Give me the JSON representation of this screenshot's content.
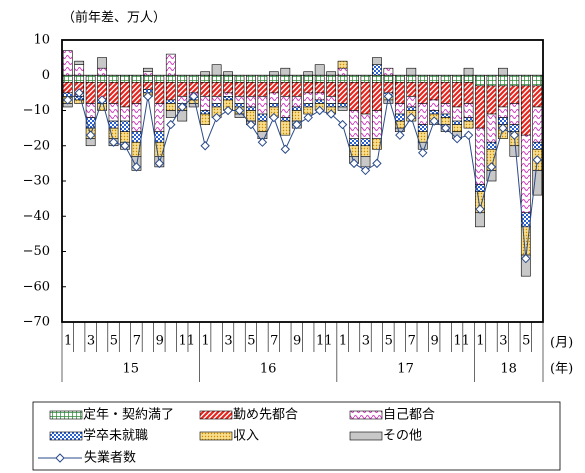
{
  "chart_data": {
    "type": "bar",
    "y_label": "（前年差、万人）",
    "x_unit_month": "(月)",
    "x_unit_year": "(年)",
    "categories": [
      "1",
      null,
      "3",
      null,
      "5",
      null,
      "7",
      null,
      "9",
      null,
      "11",
      null,
      "1",
      null,
      "3",
      null,
      "5",
      null,
      "7",
      null,
      "9",
      null,
      "11",
      null,
      "1",
      null,
      "3",
      null,
      "5",
      null,
      "7",
      null,
      "9",
      null,
      "11",
      null,
      "1",
      null,
      "3",
      null,
      "5",
      null
    ],
    "years": [
      "15",
      "16",
      "17",
      "18"
    ],
    "ylim": [
      -70,
      10
    ],
    "yticks": [
      10,
      0,
      {
        "value": -10,
        "label": "−10"
      },
      {
        "value": -20,
        "label": "−20"
      },
      {
        "value": -30,
        "label": "−30"
      },
      {
        "value": -40,
        "label": "−40"
      },
      {
        "value": -50,
        "label": "−50"
      },
      {
        "value": -60,
        "label": "−60"
      },
      {
        "value": -70,
        "label": "−70"
      }
    ],
    "series": [
      {
        "name": "定年・契約満了",
        "color": "#2e8b3a",
        "pattern": "grid",
        "values": [
          -2,
          -2,
          -2,
          -2,
          -2,
          -2,
          -2,
          -2,
          -2,
          -2,
          -2,
          -2,
          -2,
          -2,
          -2,
          -2,
          -2,
          -2,
          -2,
          -2,
          -2,
          -2,
          -2,
          -2,
          -2,
          -2,
          -2,
          -2,
          -2,
          -2,
          -2,
          -2,
          -2,
          -2,
          -2,
          -2,
          -3,
          -3,
          -3,
          -3,
          -3,
          -3
        ]
      },
      {
        "name": "勤め先都合",
        "color": "#e8241c",
        "pattern": "diag",
        "values": [
          -3,
          -4,
          -6,
          -5,
          -6,
          -7,
          -6,
          -2,
          -6,
          -5,
          -4,
          -3,
          -4,
          -4,
          -3,
          -4,
          -4,
          -4,
          -3,
          -4,
          -4,
          -3,
          -3,
          -4,
          -6,
          -8,
          -9,
          -8,
          -3,
          -6,
          -4,
          -6,
          -5,
          -6,
          -7,
          -6,
          -12,
          -8,
          -6,
          -5,
          -14,
          -6
        ]
      },
      {
        "name": "自己都合",
        "color": "#d13fc0",
        "pattern": "wave",
        "values": [
          7,
          3,
          -4,
          2,
          -5,
          -4,
          -8,
          1,
          -8,
          6,
          -2,
          -1,
          -4,
          -2,
          -1,
          -2,
          -3,
          -5,
          -3,
          -6,
          -3,
          -3,
          -2,
          -2,
          2,
          -8,
          -7,
          -8,
          2,
          -3,
          -3,
          -6,
          -3,
          -3,
          -4,
          -4,
          -16,
          -8,
          -3,
          -6,
          -22,
          -10
        ]
      },
      {
        "name": "学卒未就職",
        "color": "#2a62d6",
        "pattern": "check",
        "values": [
          -1,
          -1,
          -3,
          -1,
          -2,
          -3,
          -3,
          -1,
          -3,
          -1,
          -1,
          -1,
          -1,
          -1,
          -1,
          -1,
          -1,
          -2,
          -1,
          -1,
          -1,
          -1,
          -1,
          -1,
          -1,
          -2,
          -2,
          3,
          -1,
          -2,
          -1,
          -2,
          -1,
          -1,
          -1,
          -1,
          -2,
          -2,
          -2,
          -2,
          -4,
          -2
        ]
      },
      {
        "name": "収入",
        "color": "#f2c12e",
        "pattern": "dots",
        "values": [
          -2,
          -1,
          -3,
          -2,
          -3,
          -3,
          -4,
          -1,
          -4,
          -2,
          -1,
          -1,
          -3,
          -3,
          -3,
          -2,
          -3,
          -3,
          -3,
          -4,
          -3,
          -2,
          -2,
          -2,
          2,
          -3,
          -3,
          -3,
          -1,
          -2,
          -3,
          -3,
          -2,
          -2,
          -2,
          -2,
          -6,
          -6,
          -4,
          -4,
          -8,
          -6
        ]
      },
      {
        "name": "その他",
        "color": "#c8c8c8",
        "pattern": "solid",
        "values": [
          -1,
          1,
          -2,
          3,
          -2,
          -2,
          -4,
          1,
          -3,
          -2,
          -3,
          -1,
          1,
          3,
          1,
          -1,
          -1,
          -2,
          1,
          2,
          -2,
          1,
          3,
          1,
          -1,
          -2,
          -3,
          2,
          -1,
          -1,
          2,
          -2,
          -1,
          -2,
          -2,
          2,
          -4,
          -3,
          2,
          -3,
          -6,
          -7
        ]
      }
    ],
    "line": {
      "name": "失業者数",
      "color": "#2a4a8a",
      "values": [
        -7,
        -5,
        -17,
        -7,
        -19,
        -20,
        -26,
        -6,
        -25,
        -14,
        -9,
        -6,
        -20,
        -12,
        -10,
        -10,
        -14,
        -19,
        -12,
        -21,
        -14,
        -12,
        -10,
        -11,
        -14,
        -25,
        -27,
        -25,
        -6,
        -17,
        -12,
        -22,
        -13,
        -15,
        -18,
        -17,
        -38,
        -26,
        -15,
        -17,
        -52,
        -24
      ]
    }
  }
}
